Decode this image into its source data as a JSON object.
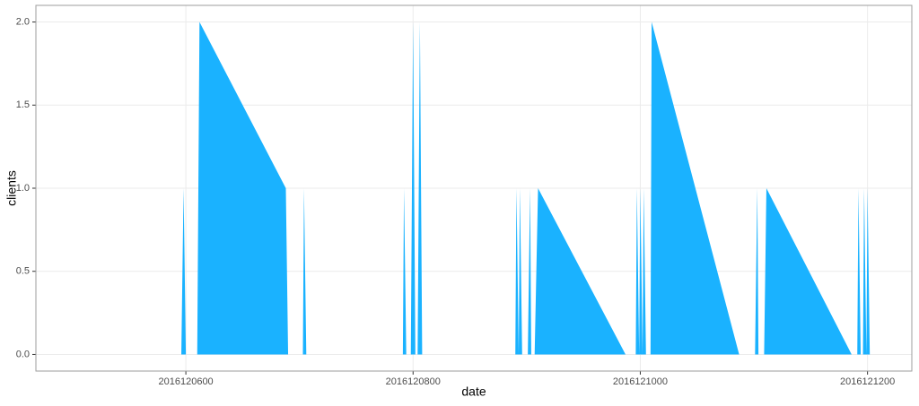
{
  "chart_data": {
    "type": "area",
    "xlabel": "date",
    "ylabel": "clients",
    "x": [
      2016120476,
      2016120596,
      2016120598,
      2016120600,
      2016120610,
      2016120612,
      2016120688,
      2016120690,
      2016120703,
      2016120704,
      2016120706,
      2016120791,
      2016120792,
      2016120794,
      2016120798,
      2016120800,
      2016120802,
      2016120804,
      2016120806,
      2016120808,
      2016120890,
      2016120891,
      2016120893,
      2016120894,
      2016120896,
      2016120901,
      2016120903,
      2016120904,
      2016120907,
      2016120910,
      2016120987,
      2016120996,
      2016120997,
      2016120999,
      2016121000,
      2016121002,
      2016121003,
      2016121005,
      2016121009,
      2016121010,
      2016121087,
      2016121101,
      2016121103,
      2016121104,
      2016121109,
      2016121111,
      2016121186,
      2016121191,
      2016121192,
      2016121194,
      2016121196,
      2016121197,
      2016121199,
      2016121200,
      2016121202,
      2016121228
    ],
    "values": [
      0,
      0,
      1,
      0,
      0,
      2,
      1,
      0,
      0,
      1,
      0,
      0,
      1,
      0,
      0,
      2,
      0,
      0,
      2,
      0,
      0,
      1,
      0,
      1,
      0,
      0,
      1,
      0,
      0,
      1,
      0,
      0,
      1,
      0,
      1,
      0,
      1,
      0,
      0,
      2,
      0,
      0,
      1,
      0,
      0,
      1,
      0,
      0,
      1,
      0,
      0,
      1,
      0,
      1,
      0,
      0
    ],
    "color": "#1ab2ff",
    "xlim": [
      2016120468,
      2016121239
    ],
    "xticks": [
      2016120600,
      2016120800,
      2016121000,
      2016121200
    ],
    "ylim": [
      -0.1,
      2.1
    ],
    "yticks": [
      {
        "value": 0,
        "label": "0.0"
      },
      0.5,
      {
        "value": 1,
        "label": "1.0"
      },
      1.5,
      {
        "value": 2,
        "label": "2.0"
      }
    ],
    "grid": true
  }
}
